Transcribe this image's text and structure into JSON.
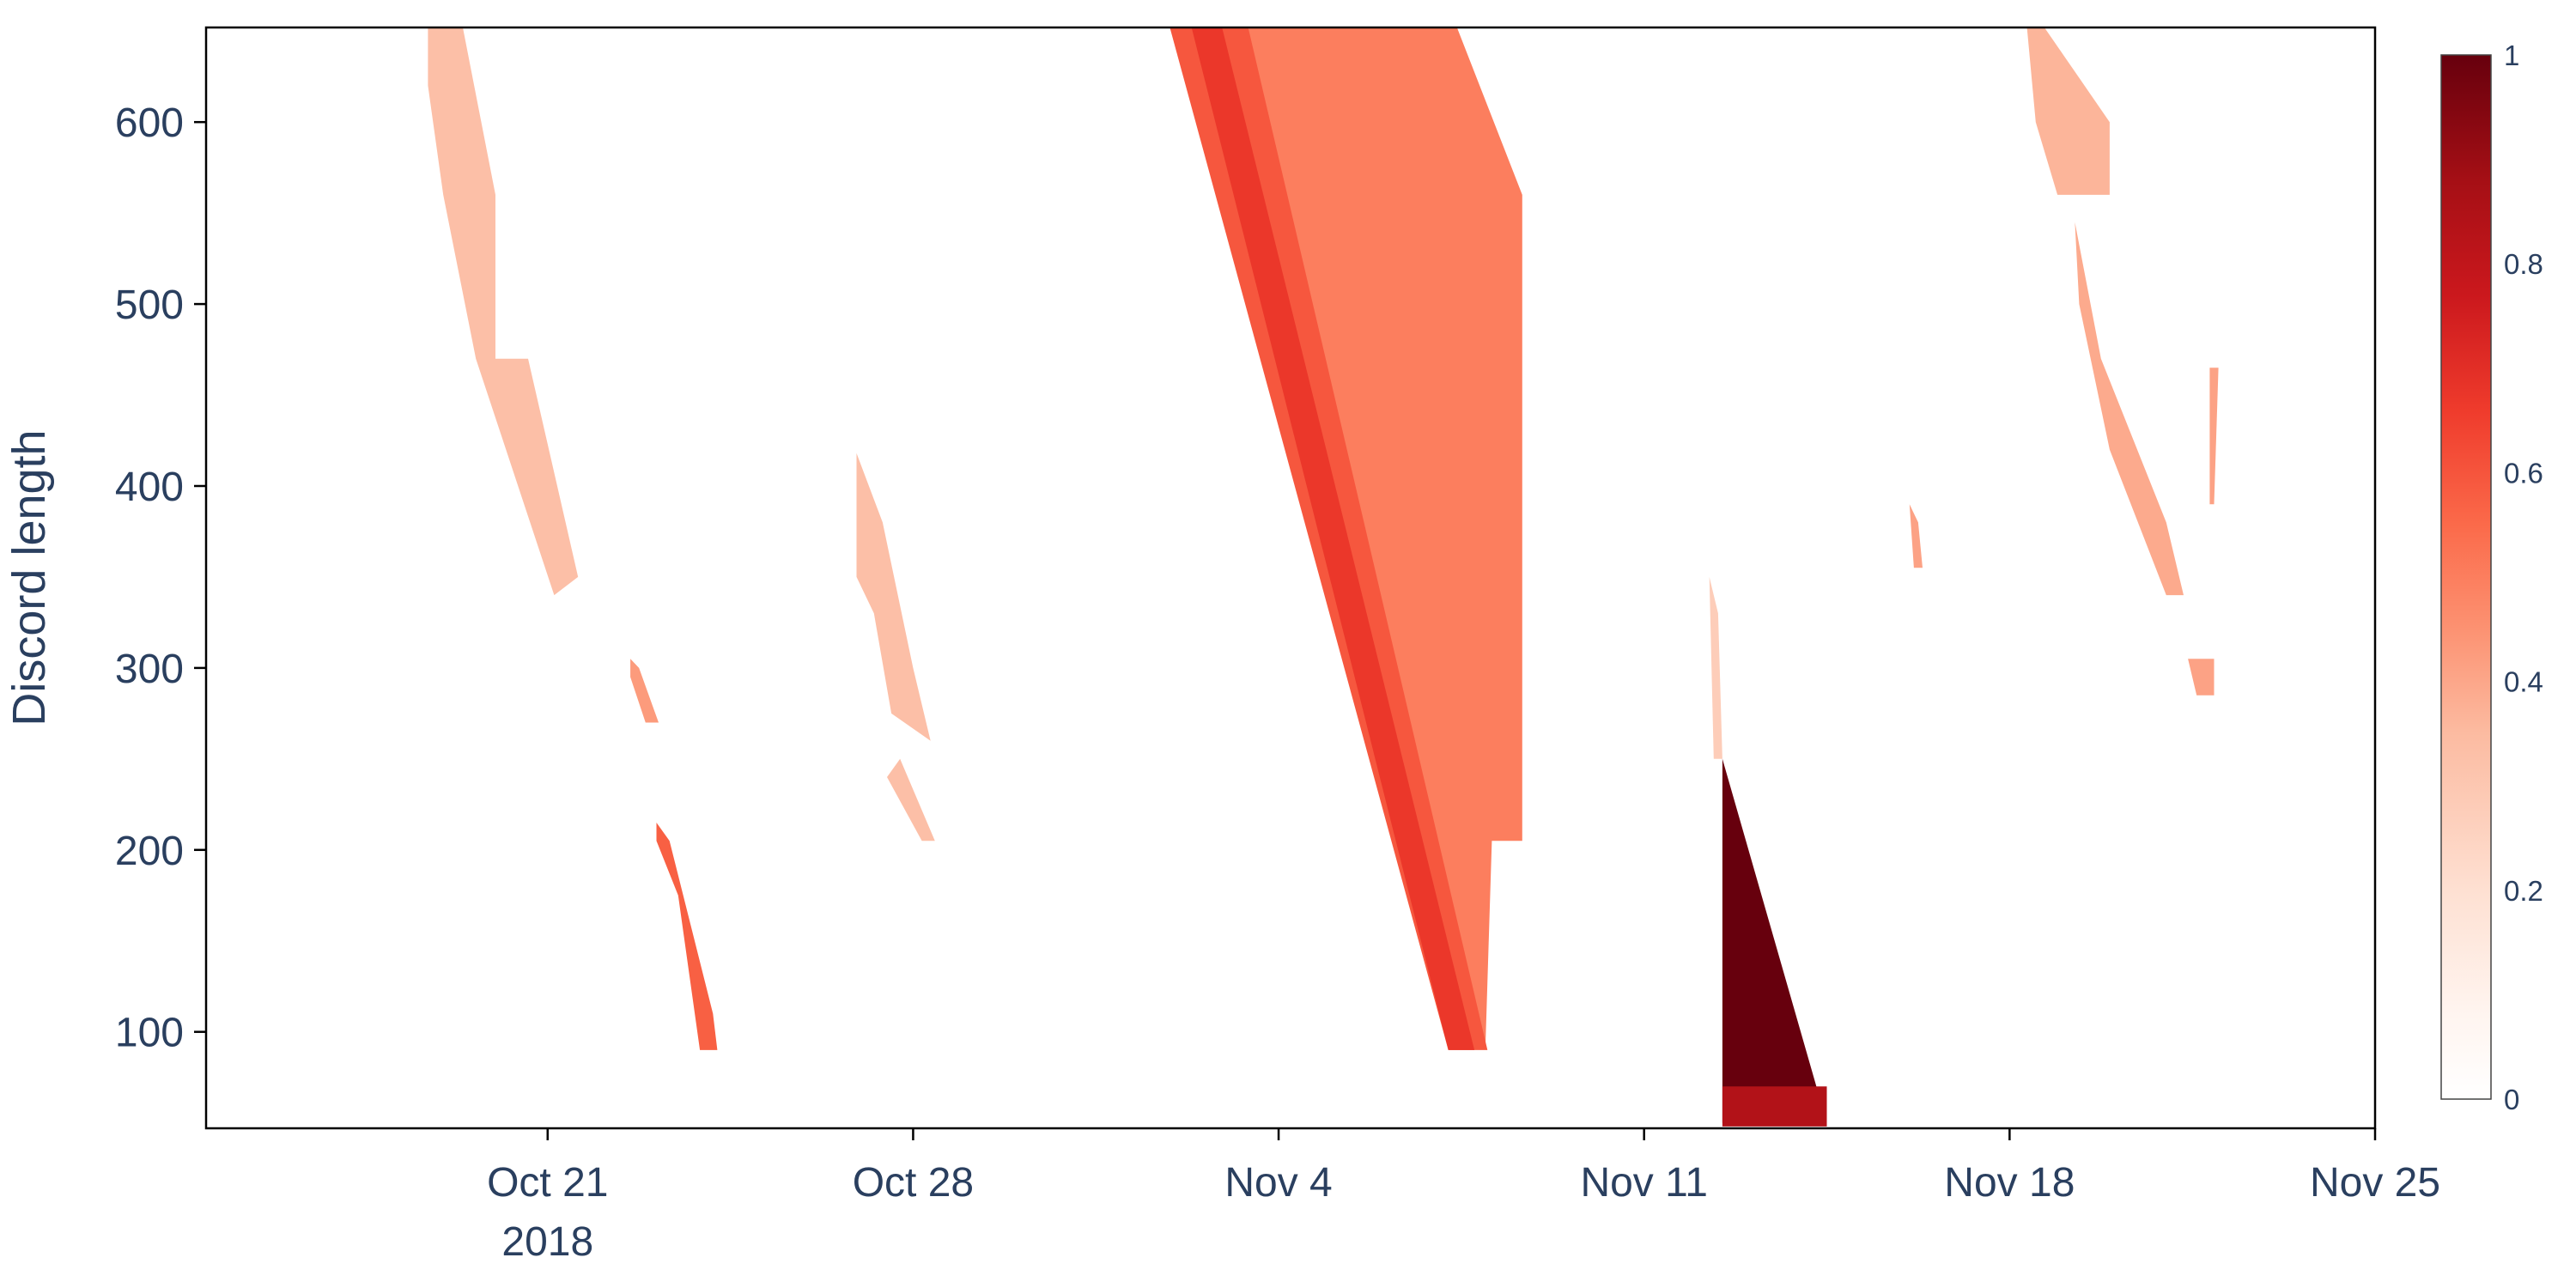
{
  "chart_data": {
    "type": "heatmap",
    "title": "",
    "xlabel": "",
    "ylabel": "Discord length",
    "x_ticks": [
      {
        "date": "2018-10-21",
        "label": "Oct 21",
        "sublabel": "2018"
      },
      {
        "date": "2018-10-28",
        "label": "Oct 28",
        "sublabel": ""
      },
      {
        "date": "2018-11-04",
        "label": "Nov 4",
        "sublabel": ""
      },
      {
        "date": "2018-11-11",
        "label": "Nov 11",
        "sublabel": ""
      },
      {
        "date": "2018-11-18",
        "label": "Nov 18",
        "sublabel": ""
      },
      {
        "date": "2018-11-25",
        "label": "Nov 25",
        "sublabel": ""
      }
    ],
    "xlim": [
      "2018-10-14T11:00",
      "2018-11-25T00:00"
    ],
    "y_ticks": [
      100,
      200,
      300,
      400,
      500,
      600
    ],
    "ylim": [
      47,
      652
    ],
    "grid": false,
    "colorbar": {
      "min": 0,
      "max": 1,
      "ticks": [
        0,
        0.2,
        0.4,
        0.6,
        0.8,
        1
      ],
      "tick_labels": [
        "0",
        "0.2",
        "0.4",
        "0.6",
        "0.8",
        "1"
      ],
      "colors": [
        "#ffffff",
        "#fff5f0",
        "#fee0d2",
        "#fcbba1",
        "#fc9272",
        "#fb6a4a",
        "#ef3b2c",
        "#cb181d",
        "#a50f15",
        "#67000d"
      ]
    },
    "regions": [
      {
        "name": "band-oct20",
        "value": 0.32,
        "points": [
          [
            "2018-10-18T17:00",
            652
          ],
          [
            "2018-10-19T09:00",
            652
          ],
          [
            "2018-10-20T00:00",
            560
          ],
          [
            "2018-10-20T00:00",
            470
          ],
          [
            "2018-10-20T15:00",
            470
          ],
          [
            "2018-10-21T14:00",
            350
          ],
          [
            "2018-10-21T03:00",
            340
          ],
          [
            "2018-10-19T15:00",
            470
          ],
          [
            "2018-10-19T00:00",
            560
          ],
          [
            "2018-10-18T17:00",
            620
          ]
        ]
      },
      {
        "name": "blob-oct22-300",
        "value": 0.42,
        "points": [
          [
            "2018-10-22T14:00",
            305
          ],
          [
            "2018-10-22T18:00",
            300
          ],
          [
            "2018-10-23T03:00",
            270
          ],
          [
            "2018-10-22T21:00",
            270
          ],
          [
            "2018-10-22T14:00",
            295
          ]
        ]
      },
      {
        "name": "band-oct23",
        "value": 0.58,
        "points": [
          [
            "2018-10-23T02:00",
            215
          ],
          [
            "2018-10-23T08:00",
            205
          ],
          [
            "2018-10-24T04:00",
            110
          ],
          [
            "2018-10-24T06:00",
            90
          ],
          [
            "2018-10-23T22:00",
            90
          ],
          [
            "2018-10-23T12:00",
            175
          ],
          [
            "2018-10-23T02:00",
            205
          ]
        ]
      },
      {
        "name": "band-oct27",
        "value": 0.32,
        "points": [
          [
            "2018-10-26T22:00",
            418
          ],
          [
            "2018-10-27T10:00",
            380
          ],
          [
            "2018-10-28T00:00",
            300
          ],
          [
            "2018-10-28T08:00",
            260
          ],
          [
            "2018-10-27T14:00",
            275
          ],
          [
            "2018-10-27T06:00",
            330
          ],
          [
            "2018-10-26T22:00",
            350
          ]
        ]
      },
      {
        "name": "sliver-oct27-200",
        "value": 0.32,
        "points": [
          [
            "2018-10-27T12:00",
            240
          ],
          [
            "2018-10-28T04:00",
            205
          ],
          [
            "2018-10-28T10:00",
            205
          ],
          [
            "2018-10-27T18:00",
            250
          ]
        ]
      },
      {
        "name": "band-nov3-light",
        "value": 0.5,
        "points": [
          [
            "2018-11-01T22:00",
            652
          ],
          [
            "2018-11-07T10:00",
            652
          ],
          [
            "2018-11-08T16:00",
            560
          ],
          [
            "2018-11-08T16:00",
            205
          ],
          [
            "2018-11-08T02:00",
            205
          ],
          [
            "2018-11-07T23:00",
            90
          ],
          [
            "2018-11-06T22:00",
            220
          ],
          [
            "2018-11-02T12:00",
            640
          ]
        ]
      },
      {
        "name": "band-nov3-main",
        "value": 0.6,
        "points": [
          [
            "2018-11-01T22:00",
            652
          ],
          [
            "2018-11-03T10:00",
            652
          ],
          [
            "2018-11-08T00:00",
            90
          ],
          [
            "2018-11-07T06:00",
            90
          ]
        ]
      },
      {
        "name": "band-nov3-dark",
        "value": 0.68,
        "points": [
          [
            "2018-11-02T08:00",
            652
          ],
          [
            "2018-11-02T22:00",
            652
          ],
          [
            "2018-11-07T18:00",
            90
          ],
          [
            "2018-11-07T06:00",
            90
          ]
        ]
      },
      {
        "name": "sliver-nov12",
        "value": 0.28,
        "points": [
          [
            "2018-11-12T06:00",
            350
          ],
          [
            "2018-11-12T10:00",
            330
          ],
          [
            "2018-11-12T12:00",
            250
          ],
          [
            "2018-11-12T08:00",
            250
          ]
        ]
      },
      {
        "name": "triangle-nov12",
        "value": 1.0,
        "points": [
          [
            "2018-11-12T12:00",
            250
          ],
          [
            "2018-11-14T12:00",
            50
          ],
          [
            "2018-11-12T12:00",
            50
          ]
        ]
      },
      {
        "name": "base-nov12",
        "value": 0.85,
        "points": [
          [
            "2018-11-12T12:00",
            70
          ],
          [
            "2018-11-14T12:00",
            70
          ],
          [
            "2018-11-14T12:00",
            48
          ],
          [
            "2018-11-12T12:00",
            48
          ]
        ]
      },
      {
        "name": "sliver-nov16",
        "value": 0.4,
        "points": [
          [
            "2018-11-16T02:00",
            390
          ],
          [
            "2018-11-16T06:00",
            380
          ],
          [
            "2018-11-16T08:00",
            355
          ],
          [
            "2018-11-16T04:00",
            355
          ]
        ]
      },
      {
        "name": "band-nov18-top",
        "value": 0.35,
        "points": [
          [
            "2018-11-18T08:00",
            652
          ],
          [
            "2018-11-18T16:00",
            652
          ],
          [
            "2018-11-19T22:00",
            600
          ],
          [
            "2018-11-19T22:00",
            560
          ],
          [
            "2018-11-18T22:00",
            560
          ],
          [
            "2018-11-18T12:00",
            600
          ]
        ]
      },
      {
        "name": "band-nov19-mid",
        "value": 0.38,
        "points": [
          [
            "2018-11-19T06:00",
            545
          ],
          [
            "2018-11-19T18:00",
            470
          ],
          [
            "2018-11-21T00:00",
            380
          ],
          [
            "2018-11-21T08:00",
            340
          ],
          [
            "2018-11-21T00:00",
            340
          ],
          [
            "2018-11-19T22:00",
            420
          ],
          [
            "2018-11-19T08:00",
            500
          ]
        ]
      },
      {
        "name": "blob-nov21-300",
        "value": 0.4,
        "points": [
          [
            "2018-11-21T10:00",
            305
          ],
          [
            "2018-11-21T22:00",
            305
          ],
          [
            "2018-11-21T22:00",
            285
          ],
          [
            "2018-11-21T14:00",
            285
          ]
        ]
      },
      {
        "name": "sliver-nov21-450",
        "value": 0.4,
        "points": [
          [
            "2018-11-21T20:00",
            465
          ],
          [
            "2018-11-22T00:00",
            465
          ],
          [
            "2018-11-21T22:00",
            390
          ],
          [
            "2018-11-21T20:00",
            390
          ]
        ]
      }
    ]
  }
}
